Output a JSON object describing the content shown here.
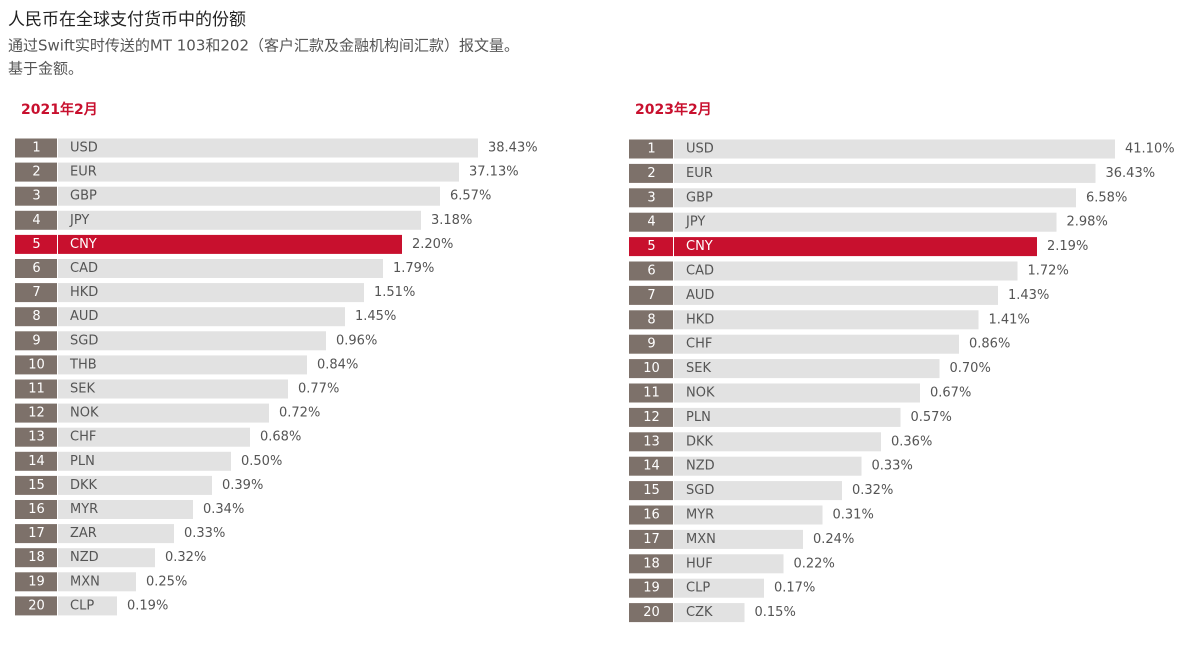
{
  "header": {
    "title": "人民币在全球支付货币中的份额",
    "subtitle": "通过Swift实时传送的MT 103和202（客户汇款及金融机构间汇款）报文量。",
    "note": "基于金额。"
  },
  "panels": [
    {
      "title": "2021年2月",
      "rows": [
        [
          1,
          "USD",
          "38.43%"
        ],
        [
          2,
          "EUR",
          "37.13%"
        ],
        [
          3,
          "GBP",
          "6.57%"
        ],
        [
          4,
          "JPY",
          "3.18%"
        ],
        [
          5,
          "CNY",
          "2.20%"
        ],
        [
          6,
          "CAD",
          "1.79%"
        ],
        [
          7,
          "HKD",
          "1.51%"
        ],
        [
          8,
          "AUD",
          "1.45%"
        ],
        [
          9,
          "SGD",
          "0.96%"
        ],
        [
          10,
          "THB",
          "0.84%"
        ],
        [
          11,
          "SEK",
          "0.77%"
        ],
        [
          12,
          "NOK",
          "0.72%"
        ],
        [
          13,
          "CHF",
          "0.68%"
        ],
        [
          14,
          "PLN",
          "0.50%"
        ],
        [
          15,
          "DKK",
          "0.39%"
        ],
        [
          16,
          "MYR",
          "0.34%"
        ],
        [
          17,
          "ZAR",
          "0.33%"
        ],
        [
          18,
          "NZD",
          "0.32%"
        ],
        [
          19,
          "MXN",
          "0.25%"
        ],
        [
          20,
          "CLP",
          "0.19%"
        ]
      ]
    },
    {
      "title": "2023年2月",
      "rows": [
        [
          1,
          "USD",
          "41.10%"
        ],
        [
          2,
          "EUR",
          "36.43%"
        ],
        [
          3,
          "GBP",
          "6.58%"
        ],
        [
          4,
          "JPY",
          "2.98%"
        ],
        [
          5,
          "CNY",
          "2.19%"
        ],
        [
          6,
          "CAD",
          "1.72%"
        ],
        [
          7,
          "AUD",
          "1.43%"
        ],
        [
          8,
          "HKD",
          "1.41%"
        ],
        [
          9,
          "CHF",
          "0.86%"
        ],
        [
          10,
          "SEK",
          "0.70%"
        ],
        [
          11,
          "NOK",
          "0.67%"
        ],
        [
          12,
          "PLN",
          "0.57%"
        ],
        [
          13,
          "DKK",
          "0.36%"
        ],
        [
          14,
          "NZD",
          "0.33%"
        ],
        [
          15,
          "SGD",
          "0.32%"
        ],
        [
          16,
          "MYR",
          "0.31%"
        ],
        [
          17,
          "MXN",
          "0.24%"
        ],
        [
          18,
          "HUF",
          "0.22%"
        ],
        [
          19,
          "CLP",
          "0.17%"
        ],
        [
          20,
          "CZK",
          "0.15%"
        ]
      ]
    }
  ]
}
